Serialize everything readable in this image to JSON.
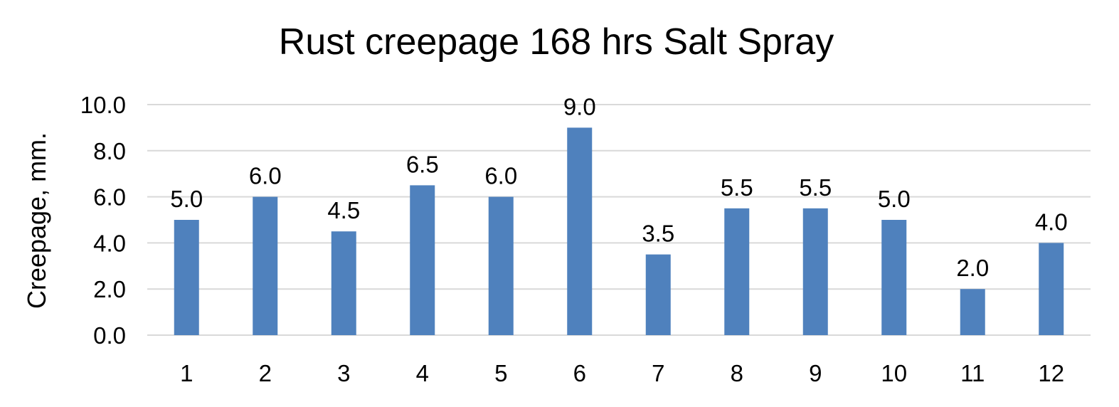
{
  "chart_data": {
    "type": "bar",
    "title": "Rust creepage 168 hrs Salt Spray",
    "xlabel": "",
    "ylabel": "Creepage, mm.",
    "categories": [
      "1",
      "2",
      "3",
      "4",
      "5",
      "6",
      "7",
      "8",
      "9",
      "10",
      "11",
      "12"
    ],
    "values": [
      5.0,
      6.0,
      4.5,
      6.5,
      6.0,
      9.0,
      3.5,
      5.5,
      5.5,
      5.0,
      2.0,
      4.0
    ],
    "data_labels": [
      "5.0",
      "6.0",
      "4.5",
      "6.5",
      "6.0",
      "9.0",
      "3.5",
      "5.5",
      "5.5",
      "5.0",
      "2.0",
      "4.0"
    ],
    "ylim": [
      0,
      10
    ],
    "yticks": [
      "0.0",
      "2.0",
      "4.0",
      "6.0",
      "8.0",
      "10.0"
    ],
    "grid": true,
    "legend": "none",
    "colors": {
      "bar": "#4f81bd",
      "grid": "#d9d9d9",
      "text": "#000000"
    }
  }
}
